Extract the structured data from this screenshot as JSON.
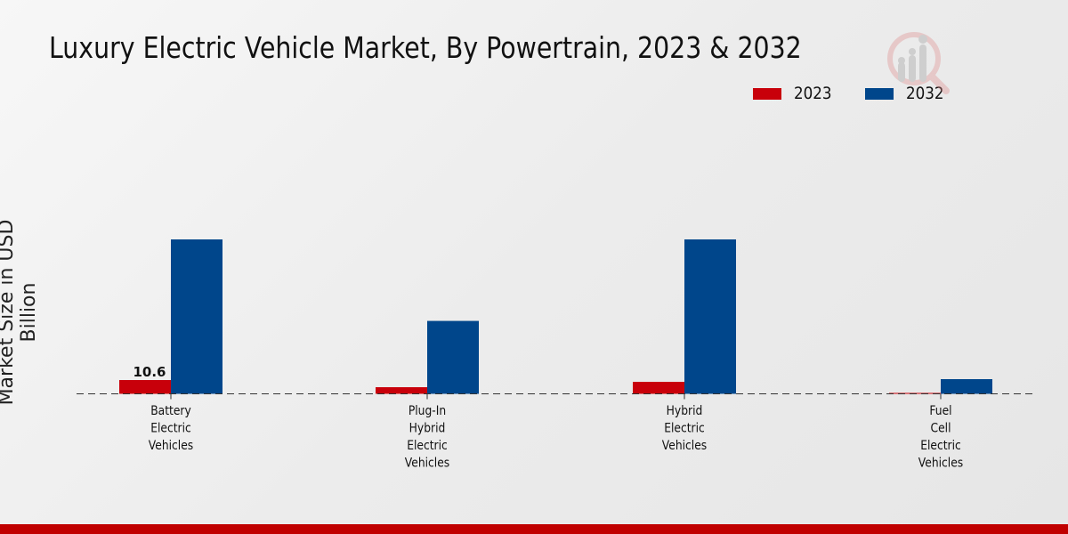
{
  "chart_data": {
    "type": "bar",
    "title": "Luxury Electric Vehicle Market, By Powertrain, 2023 & 2032",
    "xlabel": "",
    "ylabel": "Market Size in USD Billion",
    "categories": [
      [
        "Battery",
        "Electric",
        "Vehicles"
      ],
      [
        "Plug-In",
        "Hybrid",
        "Electric",
        "Vehicles"
      ],
      [
        "Hybrid",
        "Electric",
        "Vehicles"
      ],
      [
        "Fuel",
        "Cell",
        "Electric",
        "Vehicles"
      ]
    ],
    "series": [
      {
        "name": "2023",
        "color": "#c8000a",
        "values": [
          10.6,
          5.1,
          9.2,
          0.2
        ]
      },
      {
        "name": "2032",
        "color": "#00468b",
        "values": [
          118.8,
          56.1,
          118.8,
          11.3
        ]
      }
    ],
    "data_labels": [
      {
        "series": "2023",
        "category_index": 0,
        "text": "10.6"
      }
    ],
    "ylim": [
      0,
      130
    ],
    "grid": false,
    "legend": "top-right"
  },
  "footer_color": "#c00000"
}
